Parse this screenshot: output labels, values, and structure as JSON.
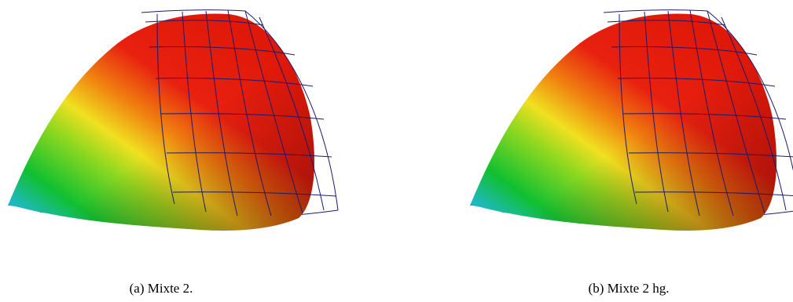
{
  "figures": [
    {
      "caption": "(a) Mixte 2."
    },
    {
      "caption": "(b) Mixte 2 hg."
    }
  ]
}
